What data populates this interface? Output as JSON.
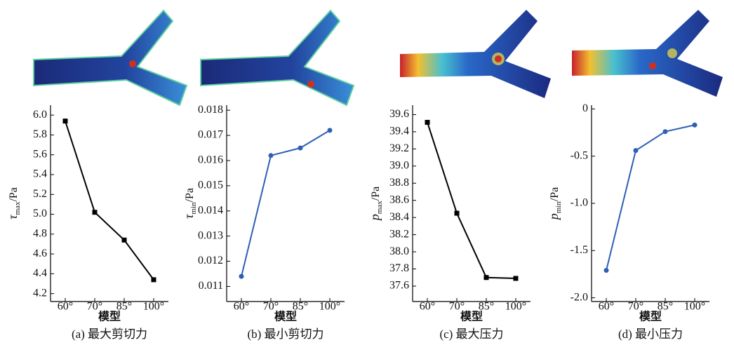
{
  "chart_data": [
    {
      "type": "line",
      "caption": "(a) 最大剪切力",
      "x_label": "模型",
      "y_label": {
        "symbol": "τ",
        "subscript": "max",
        "unit": "/Pa"
      },
      "categories": [
        "60°",
        "70°",
        "85°",
        "100°"
      ],
      "series": [
        {
          "color": "#000000",
          "marker": "square",
          "values": [
            5.94,
            5.02,
            4.74,
            4.34
          ]
        }
      ],
      "ylim": [
        4.12,
        6.1
      ],
      "yticks": [
        4.2,
        4.4,
        4.6,
        4.8,
        {
          "value": 5,
          "label": "5.0"
        },
        5.2,
        5.4,
        5.6,
        5.8,
        {
          "value": 6,
          "label": "6.0"
        }
      ]
    },
    {
      "type": "line",
      "caption": "(b) 最小剪切力",
      "x_label": "模型",
      "y_label": {
        "symbol": "τ",
        "subscript": "min",
        "unit": "/Pa"
      },
      "categories": [
        "60°",
        "70°",
        "85°",
        "100°"
      ],
      "series": [
        {
          "color": "#2e5fb5",
          "marker": "circle",
          "values": [
            0.0114,
            0.0162,
            0.0165,
            0.0172
          ]
        }
      ],
      "ylim": [
        0.0104,
        0.0182
      ],
      "yticks": [
        0.011,
        0.012,
        0.013,
        0.014,
        0.015,
        0.016,
        0.017,
        0.018
      ]
    },
    {
      "type": "line",
      "caption": "(c) 最大压力",
      "x_label": "模型",
      "y_label": {
        "symbol": "p",
        "subscript": "max",
        "unit": "/Pa"
      },
      "categories": [
        "60°",
        "70°",
        "85°",
        "100°"
      ],
      "series": [
        {
          "color": "#000000",
          "marker": "square",
          "values": [
            39.51,
            38.45,
            37.7,
            37.69
          ]
        }
      ],
      "ylim": [
        37.42,
        39.71
      ],
      "yticks": [
        37.6,
        37.8,
        {
          "value": 38,
          "label": "38.0"
        },
        38.2,
        38.4,
        38.6,
        38.8,
        {
          "value": 39,
          "label": "39.0"
        },
        39.2,
        39.4,
        39.6
      ]
    },
    {
      "type": "line",
      "caption": "(d) 最小压力",
      "x_label": "模型",
      "y_label": {
        "symbol": "p",
        "subscript": "min",
        "unit": "/Pa"
      },
      "categories": [
        "60°",
        "70°",
        "85°",
        "100°"
      ],
      "series": [
        {
          "color": "#2e5fb5",
          "marker": "circle",
          "values": [
            -1.71,
            -0.44,
            -0.24,
            -0.17
          ]
        }
      ],
      "ylim": [
        -2.04,
        0.04
      ],
      "yticks": [
        {
          "value": -2,
          "label": "-2.0"
        },
        -1.5,
        {
          "value": -1,
          "label": "-1.0"
        },
        -0.5,
        0
      ]
    }
  ]
}
